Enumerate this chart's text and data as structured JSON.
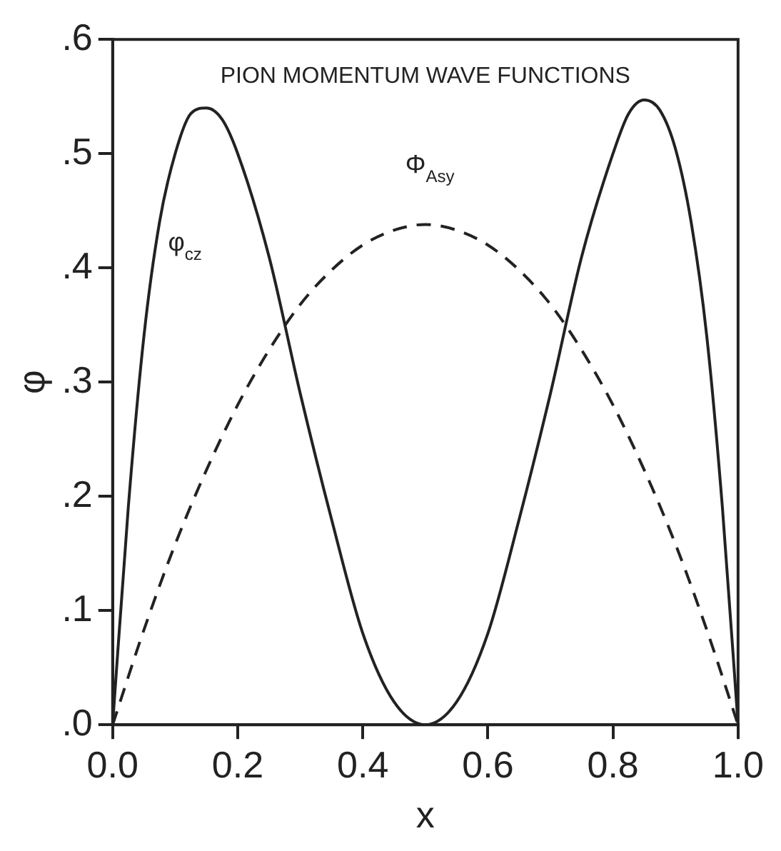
{
  "chart_data": {
    "type": "line",
    "title": "PION MOMENTUM WAVE FUNCTIONS",
    "xlabel": "x",
    "ylabel": "φ",
    "xlim": [
      0,
      1
    ],
    "xticks": [
      {
        "value": 0,
        "label": "0.0"
      },
      0.2,
      0.4,
      0.6,
      0.8,
      {
        "value": 1,
        "label": "1.0"
      }
    ],
    "ylim": [
      0,
      0.6
    ],
    "yticks": [
      {
        "value": 0,
        "label": ".0"
      },
      {
        "value": 0.1,
        "label": ".1"
      },
      {
        "value": 0.2,
        "label": ".2"
      },
      {
        "value": 0.3,
        "label": ".3"
      },
      {
        "value": 0.4,
        "label": ".4"
      },
      {
        "value": 0.5,
        "label": ".5"
      },
      {
        "value": 0.6,
        "label": ".6"
      }
    ],
    "grid": false,
    "legend": false,
    "marker": "none",
    "series": [
      {
        "name": "φ$_{cz}$",
        "color": "#222222",
        "line_style": "solid",
        "x": [
          0,
          0.025,
          0.05,
          0.075,
          0.1,
          0.125,
          0.15,
          0.175,
          0.2,
          0.25,
          0.3,
          0.35,
          0.4,
          0.45,
          0.5,
          0.55,
          0.6,
          0.65,
          0.7,
          0.75,
          0.8,
          0.825,
          0.85,
          0.875,
          0.9,
          0.925,
          0.95,
          0.975,
          1
        ],
        "values": [
          0,
          0.19,
          0.34,
          0.44,
          0.5,
          0.535,
          0.54,
          0.53,
          0.5,
          0.41,
          0.29,
          0.18,
          0.08,
          0.02,
          0,
          0.02,
          0.08,
          0.18,
          0.29,
          0.41,
          0.5,
          0.535,
          0.547,
          0.538,
          0.504,
          0.44,
          0.34,
          0.19,
          0
        ]
      },
      {
        "name": "Φ$_{Asy}$",
        "color": "#222222",
        "line_style": "dashed",
        "x": [
          0,
          0.05,
          0.1,
          0.15,
          0.2,
          0.25,
          0.3,
          0.35,
          0.4,
          0.45,
          0.5,
          0.55,
          0.6,
          0.65,
          0.7,
          0.75,
          0.8,
          0.85,
          0.9,
          0.95,
          1
        ],
        "values": [
          0,
          0.083,
          0.158,
          0.223,
          0.28,
          0.328,
          0.368,
          0.398,
          0.42,
          0.433,
          0.438,
          0.433,
          0.42,
          0.398,
          0.368,
          0.328,
          0.28,
          0.223,
          0.158,
          0.083,
          0
        ]
      }
    ]
  }
}
